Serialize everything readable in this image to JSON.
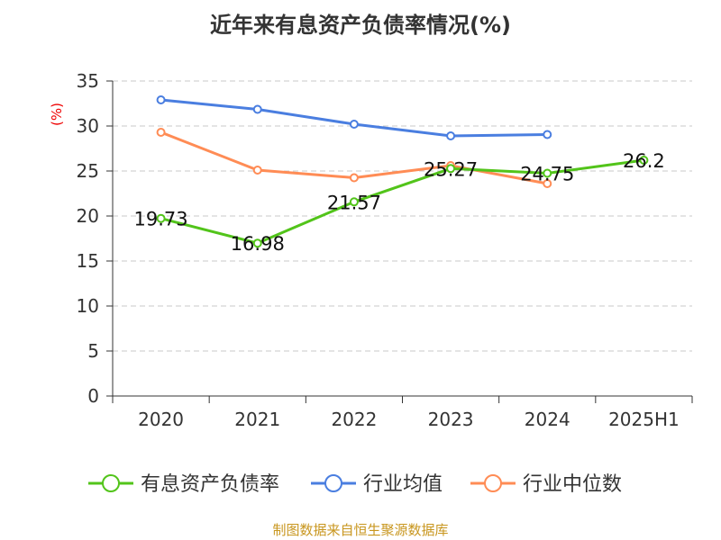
{
  "chart_data": {
    "type": "line",
    "title": "近年来有息资产负债率情况(%)",
    "ylabel": "(%)",
    "xlabel": "",
    "categories": [
      "2020",
      "2021",
      "2022",
      "2023",
      "2024",
      "2025H1"
    ],
    "ylim": [
      0,
      35
    ],
    "yticks": [
      0,
      5,
      10,
      15,
      20,
      25,
      30,
      35
    ],
    "grid": true,
    "legend_position": "bottom",
    "series": [
      {
        "name": "有息资产负债率",
        "color": "#52c41a",
        "values": [
          19.73,
          16.98,
          21.57,
          25.27,
          24.75,
          26.2
        ],
        "data_labels": [
          "19.73",
          "16.98",
          "21.57",
          "25.27",
          "24.75",
          "26.2"
        ]
      },
      {
        "name": "行业均值",
        "color": "#4a7ee0",
        "values": [
          32.9,
          31.85,
          30.2,
          28.9,
          29.05,
          null
        ]
      },
      {
        "name": "行业中位数",
        "color": "#ff8c55",
        "values": [
          29.3,
          25.1,
          24.25,
          25.6,
          23.6,
          null
        ]
      }
    ]
  },
  "source": "制图数据来自恒生聚源数据库"
}
